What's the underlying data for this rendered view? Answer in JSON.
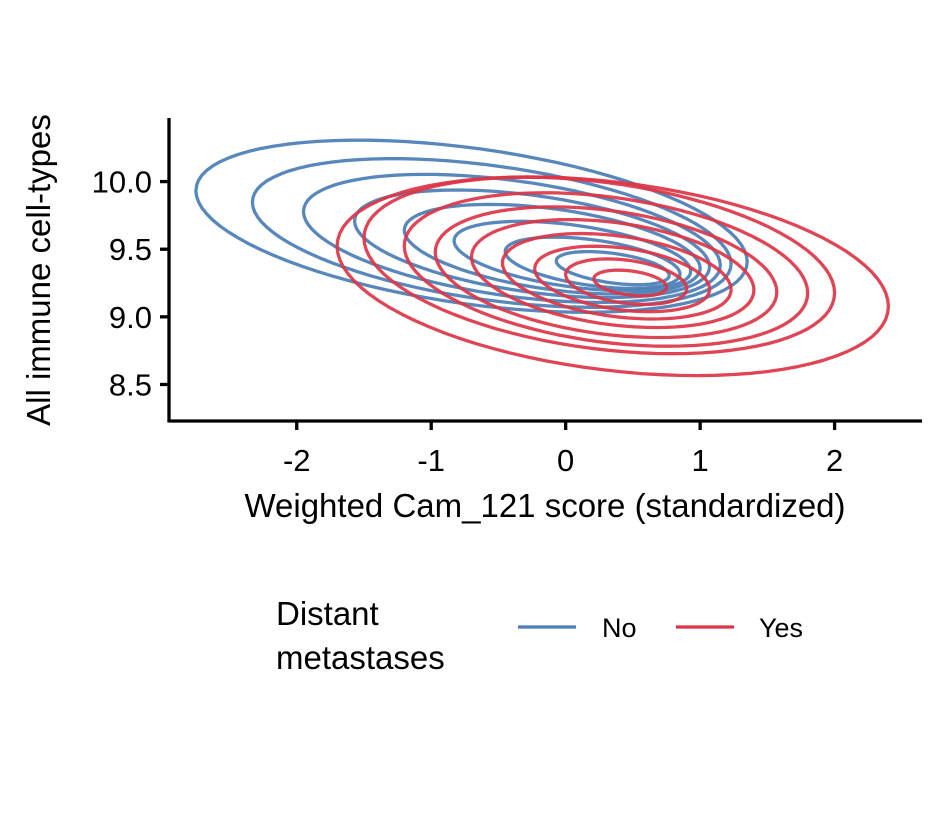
{
  "chart_data": {
    "type": "contour",
    "xlabel": "Weighted Cam_121 score (standardized)",
    "ylabel": "All immune cell-types",
    "xlim": [
      -2.95,
      2.65
    ],
    "ylim": [
      8.23,
      10.47
    ],
    "x_ticks": [
      -2,
      -1,
      0,
      1,
      2
    ],
    "x_tick_labels": [
      "-2",
      "-1",
      "0",
      "1",
      "2"
    ],
    "y_ticks": [
      8.5,
      9.0,
      9.5,
      10.0
    ],
    "y_tick_labels": [
      "8.5",
      "9.0",
      "9.5",
      "10.0"
    ],
    "grid": false,
    "legend": {
      "position": "bottom",
      "title_lines": [
        "Distant",
        "metastases"
      ],
      "entries": [
        "No",
        "Yes"
      ]
    },
    "series": [
      {
        "name": "No",
        "color": "#4a7eb5",
        "levels": [
          {
            "cx": -0.7,
            "cy": 9.67,
            "sx": 2.05,
            "sy": 0.58,
            "angle": 0.35
          },
          {
            "cx": -0.55,
            "cy": 9.62,
            "sx": 1.78,
            "sy": 0.5,
            "angle": 0.35
          },
          {
            "cx": -0.4,
            "cy": 9.58,
            "sx": 1.55,
            "sy": 0.43,
            "angle": 0.35
          },
          {
            "cx": -0.25,
            "cy": 9.54,
            "sx": 1.32,
            "sy": 0.36,
            "angle": 0.35
          },
          {
            "cx": -0.1,
            "cy": 9.5,
            "sx": 1.1,
            "sy": 0.3,
            "angle": 0.35
          },
          {
            "cx": 0.05,
            "cy": 9.45,
            "sx": 0.88,
            "sy": 0.23,
            "angle": 0.35
          },
          {
            "cx": 0.2,
            "cy": 9.4,
            "sx": 0.65,
            "sy": 0.17,
            "angle": 0.35
          },
          {
            "cx": 0.35,
            "cy": 9.36,
            "sx": 0.42,
            "sy": 0.11,
            "angle": 0.35
          }
        ]
      },
      {
        "name": "Yes",
        "color": "#dc3545",
        "levels": [
          {
            "cx": 0.35,
            "cy": 9.3,
            "sx": 2.05,
            "sy": 0.7,
            "angle": 0.3
          },
          {
            "cx": 0.25,
            "cy": 9.38,
            "sx": 1.75,
            "sy": 0.62,
            "angle": 0.32
          },
          {
            "cx": 0.3,
            "cy": 9.35,
            "sx": 1.5,
            "sy": 0.54,
            "angle": 0.32
          },
          {
            "cx": 0.3,
            "cy": 9.33,
            "sx": 1.27,
            "sy": 0.46,
            "angle": 0.32
          },
          {
            "cx": 0.35,
            "cy": 9.32,
            "sx": 1.05,
            "sy": 0.38,
            "angle": 0.32
          },
          {
            "cx": 0.38,
            "cy": 9.3,
            "sx": 0.85,
            "sy": 0.3,
            "angle": 0.32
          },
          {
            "cx": 0.42,
            "cy": 9.28,
            "sx": 0.65,
            "sy": 0.23,
            "angle": 0.32
          },
          {
            "cx": 0.45,
            "cy": 9.26,
            "sx": 0.45,
            "sy": 0.16,
            "angle": 0.32
          },
          {
            "cx": 0.48,
            "cy": 9.25,
            "sx": 0.27,
            "sy": 0.09,
            "angle": 0.32
          }
        ]
      }
    ]
  }
}
